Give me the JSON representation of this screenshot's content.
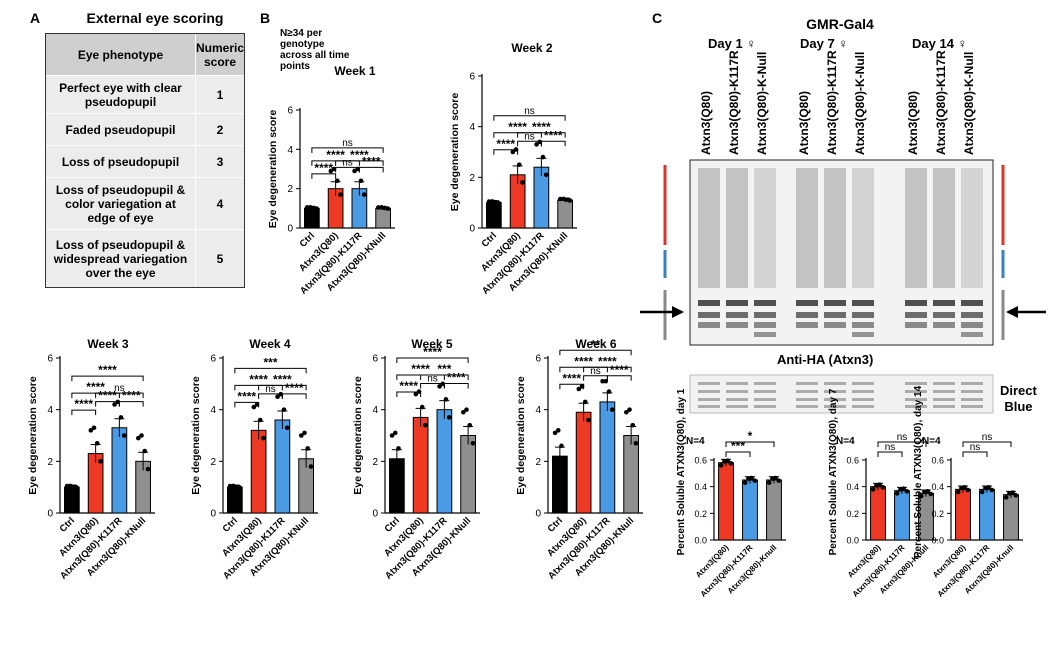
{
  "panel_a": {
    "letter": "A",
    "title": "External eye scoring",
    "col_phenotype": "Eye phenotype",
    "col_score": "Numeric score",
    "rows": [
      {
        "phenotype": "Perfect eye with clear pseudopupil",
        "score": "1"
      },
      {
        "phenotype": "Faded pseudopupil",
        "score": "2"
      },
      {
        "phenotype": "Loss of pseudopupil",
        "score": "3"
      },
      {
        "phenotype": "Loss of pseudopupil & color variegation at edge of eye",
        "score": "4"
      },
      {
        "phenotype": "Loss of pseudopupil & widespread variegation over the eye",
        "score": "5"
      }
    ]
  },
  "panel_b": {
    "letter": "B",
    "note": "N≥34 per genotype across all time points"
  },
  "panel_c": {
    "letter": "C",
    "driver": "GMR-Gal4",
    "days": [
      "Day 1 ♀",
      "Day 7 ♀",
      "Day 14 ♀"
    ],
    "lanes": [
      "Atxn3(Q80)",
      "Atxn3(Q80)-K117R",
      "Atxn3(Q80)-K-Null"
    ],
    "blot_label": "Anti-HA (Atxn3)",
    "stain_label_1": "Direct",
    "stain_label_2": "Blue"
  },
  "colors": {
    "ctrl": "#000000",
    "q80": "#ee3a24",
    "k117r": "#4a9be3",
    "knull": "#8f8f8f"
  },
  "chart_data": [
    {
      "type": "bar",
      "title": "Week 1",
      "ylabel": "Eye degeneration score",
      "ylim": [
        0,
        6
      ],
      "yticks": [
        "0",
        "2",
        "4",
        "6"
      ],
      "categories": [
        "Ctrl",
        "Atxn3(Q80)",
        "Atxn3(Q80)-K117R",
        "Atxn3(Q80)-KNull"
      ],
      "values": [
        1,
        2,
        2,
        1
      ],
      "sig": [
        {
          "pair": [
            0,
            1
          ],
          "label": "****"
        },
        {
          "pair": [
            1,
            2
          ],
          "label": "ns"
        },
        {
          "pair": [
            2,
            3
          ],
          "label": "****"
        },
        {
          "pair": [
            0,
            2
          ],
          "label": "****"
        },
        {
          "pair": [
            1,
            3
          ],
          "label": "****"
        },
        {
          "pair": [
            0,
            3
          ],
          "label": "ns"
        }
      ]
    },
    {
      "type": "bar",
      "title": "Week 2",
      "ylabel": "Eye degeneration score",
      "ylim": [
        0,
        6
      ],
      "yticks": [
        "0",
        "2",
        "4",
        "6"
      ],
      "categories": [
        "Ctrl",
        "Atxn3(Q80)",
        "Atxn3(Q80)-K117R",
        "Atxn3(Q80)-KNull"
      ],
      "values": [
        1,
        2.1,
        2.4,
        1.1
      ],
      "sig": [
        {
          "pair": [
            0,
            1
          ],
          "label": "****"
        },
        {
          "pair": [
            1,
            2
          ],
          "label": "ns"
        },
        {
          "pair": [
            2,
            3
          ],
          "label": "****"
        },
        {
          "pair": [
            0,
            2
          ],
          "label": "****"
        },
        {
          "pair": [
            1,
            3
          ],
          "label": "****"
        },
        {
          "pair": [
            0,
            3
          ],
          "label": "ns"
        }
      ]
    },
    {
      "type": "bar",
      "title": "Week 3",
      "ylabel": "Eye degeneration score",
      "ylim": [
        0,
        6
      ],
      "yticks": [
        "0",
        "2",
        "4",
        "6"
      ],
      "categories": [
        "Ctrl",
        "Atxn3(Q80)",
        "Atxn3(Q80)-K117R",
        "Atxn3(Q80)-KNull"
      ],
      "values": [
        1,
        2.3,
        3.3,
        2
      ],
      "sig": [
        {
          "pair": [
            0,
            1
          ],
          "label": "****"
        },
        {
          "pair": [
            2,
            3
          ],
          "label": "****"
        },
        {
          "pair": [
            1,
            2
          ],
          "label": "****"
        },
        {
          "pair": [
            0,
            2
          ],
          "label": "****"
        },
        {
          "pair": [
            1,
            3
          ],
          "label": "ns"
        },
        {
          "pair": [
            0,
            3
          ],
          "label": "****"
        }
      ]
    },
    {
      "type": "bar",
      "title": "Week 4",
      "ylabel": "Eye degeneration score",
      "ylim": [
        0,
        6
      ],
      "yticks": [
        "0",
        "2",
        "4",
        "6"
      ],
      "categories": [
        "Ctrl",
        "Atxn3(Q80)",
        "Atxn3(Q80)-K117R",
        "Atxn3(Q80)-KNull"
      ],
      "values": [
        1,
        3.2,
        3.6,
        2.1
      ],
      "sig": [
        {
          "pair": [
            0,
            1
          ],
          "label": "****"
        },
        {
          "pair": [
            1,
            2
          ],
          "label": "ns"
        },
        {
          "pair": [
            2,
            3
          ],
          "label": "****"
        },
        {
          "pair": [
            0,
            2
          ],
          "label": "****"
        },
        {
          "pair": [
            1,
            3
          ],
          "label": "****"
        },
        {
          "pair": [
            0,
            3
          ],
          "label": "***"
        }
      ]
    },
    {
      "type": "bar",
      "title": "Week 5",
      "ylabel": "Eye degeneration score",
      "ylim": [
        0,
        6
      ],
      "yticks": [
        "0",
        "2",
        "4",
        "6"
      ],
      "categories": [
        "Ctrl",
        "Atxn3(Q80)",
        "Atxn3(Q80)-K117R",
        "Atxn3(Q80)-KNull"
      ],
      "values": [
        2.1,
        3.7,
        4,
        3
      ],
      "sig": [
        {
          "pair": [
            0,
            1
          ],
          "label": "****"
        },
        {
          "pair": [
            1,
            2
          ],
          "label": "ns"
        },
        {
          "pair": [
            2,
            3
          ],
          "label": "****"
        },
        {
          "pair": [
            0,
            2
          ],
          "label": "****"
        },
        {
          "pair": [
            1,
            3
          ],
          "label": "***"
        },
        {
          "pair": [
            0,
            3
          ],
          "label": "****"
        }
      ]
    },
    {
      "type": "bar",
      "title": "Week 6",
      "ylabel": "Eye degeneration score",
      "ylim": [
        0,
        6
      ],
      "yticks": [
        "0",
        "2",
        "4",
        "6"
      ],
      "categories": [
        "Ctrl",
        "Atxn3(Q80)",
        "Atxn3(Q80)-K117R",
        "Atxn3(Q80)-KNull"
      ],
      "values": [
        2.2,
        3.9,
        4.3,
        3
      ],
      "sig": [
        {
          "pair": [
            0,
            1
          ],
          "label": "****"
        },
        {
          "pair": [
            1,
            2
          ],
          "label": "ns"
        },
        {
          "pair": [
            2,
            3
          ],
          "label": "****"
        },
        {
          "pair": [
            0,
            2
          ],
          "label": "****"
        },
        {
          "pair": [
            1,
            3
          ],
          "label": "****"
        },
        {
          "pair": [
            0,
            3
          ],
          "label": "**"
        }
      ]
    },
    {
      "type": "bar",
      "note": "N=4",
      "ylabel": "Percent Soluble ATXN3(Q80), day 1",
      "ylim": [
        0,
        0.6
      ],
      "yticks": [
        "0.0",
        "0.2",
        "0.4",
        "0.6"
      ],
      "categories": [
        "Atxn3(Q80)",
        "Atxn3(Q80)-K117R",
        "Atxn3(Q80)-Knull"
      ],
      "values": [
        0.58,
        0.45,
        0.45
      ],
      "sig": [
        {
          "pair": [
            0,
            1
          ],
          "label": "***"
        },
        {
          "pair": [
            0,
            2
          ],
          "label": "*"
        }
      ]
    },
    {
      "type": "bar",
      "note": "N=4",
      "ylabel": "Percent Soluble ATXN3(Q80), day 7",
      "ylim": [
        0,
        0.6
      ],
      "yticks": [
        "0.0",
        "0.2",
        "0.4",
        "0.6"
      ],
      "categories": [
        "Atxn3(Q80)",
        "Atxn3(Q80)-K117R",
        "Atxn3(Q80)-Knull"
      ],
      "values": [
        0.4,
        0.37,
        0.35
      ],
      "sig": [
        {
          "pair": [
            0,
            1
          ],
          "label": "ns"
        },
        {
          "pair": [
            0,
            2
          ],
          "label": "ns"
        }
      ]
    },
    {
      "type": "bar",
      "note": "N=4",
      "ylabel": "Percent Soluble ATXN3(Q80), day 14",
      "ylim": [
        0,
        0.6
      ],
      "yticks": [
        "0.0",
        "0.2",
        "0.4",
        "0.6"
      ],
      "categories": [
        "Atxn3(Q80)",
        "Atxn3(Q80)-K117R",
        "Atxn3(Q80)-Knull"
      ],
      "values": [
        0.38,
        0.38,
        0.34
      ],
      "sig": [
        {
          "pair": [
            0,
            1
          ],
          "label": "ns"
        },
        {
          "pair": [
            0,
            2
          ],
          "label": "ns"
        }
      ]
    }
  ]
}
